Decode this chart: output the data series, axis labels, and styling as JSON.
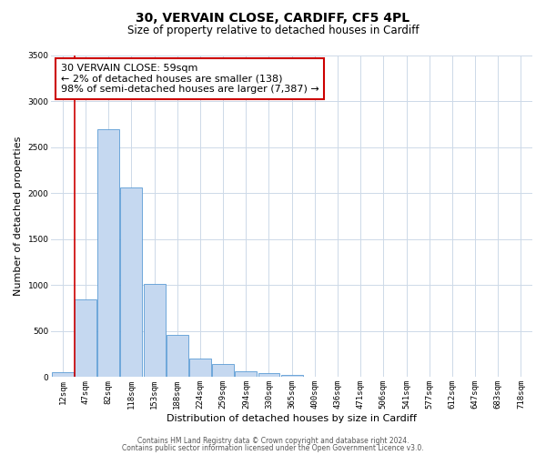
{
  "title_line1": "30, VERVAIN CLOSE, CARDIFF, CF5 4PL",
  "title_line2": "Size of property relative to detached houses in Cardiff",
  "xlabel": "Distribution of detached houses by size in Cardiff",
  "ylabel": "Number of detached properties",
  "bar_labels": [
    "12sqm",
    "47sqm",
    "82sqm",
    "118sqm",
    "153sqm",
    "188sqm",
    "224sqm",
    "259sqm",
    "294sqm",
    "330sqm",
    "365sqm",
    "400sqm",
    "436sqm",
    "471sqm",
    "506sqm",
    "541sqm",
    "577sqm",
    "612sqm",
    "647sqm",
    "683sqm",
    "718sqm"
  ],
  "bar_values": [
    55,
    850,
    2700,
    2060,
    1010,
    455,
    200,
    145,
    65,
    45,
    20,
    0,
    0,
    0,
    0,
    0,
    0,
    0,
    0,
    0,
    0
  ],
  "bar_color": "#c5d8f0",
  "bar_edge_color": "#5b9bd5",
  "vline_color": "#cc0000",
  "vline_x_index": 1,
  "annotation_title": "30 VERVAIN CLOSE: 59sqm",
  "annotation_line2": "← 2% of detached houses are smaller (138)",
  "annotation_line3": "98% of semi-detached houses are larger (7,387) →",
  "annotation_box_color": "#ffffff",
  "annotation_box_edge": "#cc0000",
  "ylim": [
    0,
    3500
  ],
  "yticks": [
    0,
    500,
    1000,
    1500,
    2000,
    2500,
    3000,
    3500
  ],
  "footer_line1": "Contains HM Land Registry data © Crown copyright and database right 2024.",
  "footer_line2": "Contains public sector information licensed under the Open Government Licence v3.0.",
  "background_color": "#ffffff",
  "grid_color": "#cdd9e8",
  "title_fontsize": 10,
  "subtitle_fontsize": 8.5,
  "ylabel_fontsize": 8,
  "xlabel_fontsize": 8,
  "tick_fontsize": 6.5,
  "annotation_fontsize": 8,
  "footer_fontsize": 5.5
}
